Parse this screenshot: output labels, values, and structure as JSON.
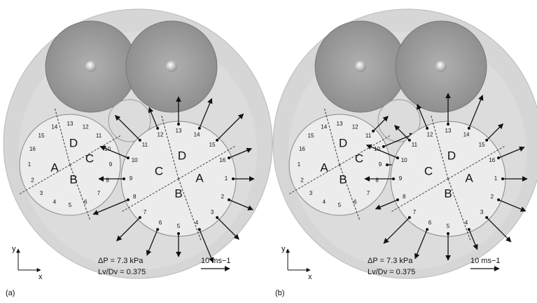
{
  "point_numbers": [
    "1",
    "2",
    "3",
    "4",
    "5",
    "6",
    "7",
    "8",
    "9",
    "10",
    "11",
    "12",
    "13",
    "14",
    "15",
    "16"
  ],
  "panels": [
    {
      "label": "(a)",
      "pressure": "ΔP = 7.3 kPa",
      "ratio": "Lv/Dv = 0.375",
      "scale": "10 ms−1",
      "x_axis": "x",
      "y_axis": "y",
      "valves": [
        {
          "letters": [
            "A",
            "B",
            "C",
            "D"
          ]
        },
        {
          "letters": [
            "A",
            "B",
            "C",
            "D"
          ]
        }
      ]
    },
    {
      "label": "(b)",
      "pressure": "ΔP = 7.3 kPa",
      "ratio": "Lv/Dv = 0.375",
      "scale": "10 ms−1",
      "x_axis": "x",
      "y_axis": "y",
      "valves": [
        {
          "letters": [
            "A",
            "B",
            "C",
            "D"
          ]
        },
        {
          "letters": [
            "A",
            "B",
            "C",
            "D"
          ]
        }
      ]
    }
  ]
}
